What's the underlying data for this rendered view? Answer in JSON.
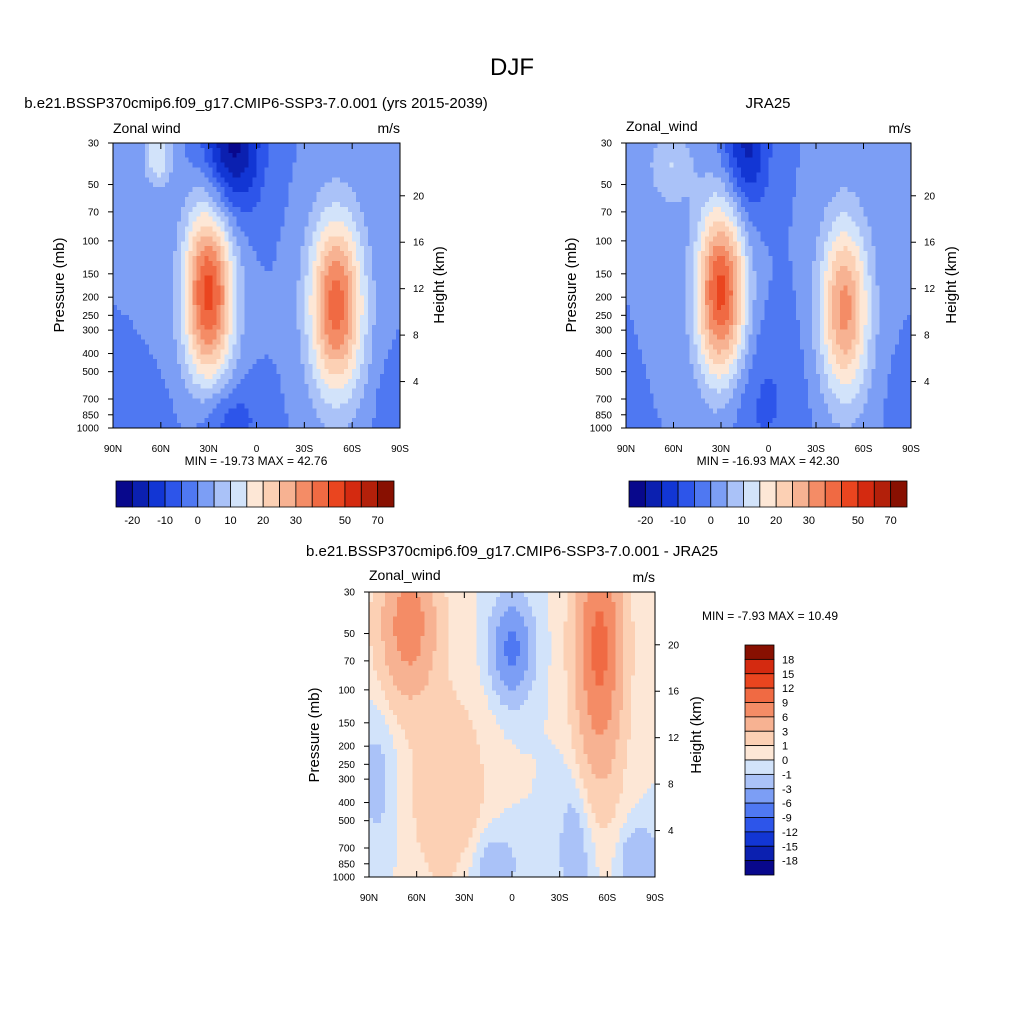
{
  "figure": {
    "title": "DJF"
  },
  "colormaps": {
    "main": [
      "#08088c",
      "#0b20b0",
      "#1236d4",
      "#2d55ea",
      "#4f78f2",
      "#7c9ef5",
      "#aac2f8",
      "#d2e3fa",
      "#fde7d6",
      "#fcd0b4",
      "#f7b292",
      "#f48c66",
      "#f06a43",
      "#ea451f",
      "#d42a10",
      "#b3200a",
      "#881001"
    ],
    "diff": [
      "#08088c",
      "#0b20b0",
      "#1236d4",
      "#2d55ea",
      "#4f78f2",
      "#7c9ef5",
      "#aac2f8",
      "#d2e3fa",
      "#fde7d6",
      "#fcd0b4",
      "#f7b292",
      "#f48c66",
      "#f06a43",
      "#ea451f",
      "#d42a10",
      "#881001"
    ]
  },
  "panels": {
    "model": {
      "title": "b.e21.BSSP370cmip6.f09_g17.CMIP6-SSP3-7.0.001 (yrs 2015-2039)",
      "variable": "Zonal wind",
      "units": "m/s",
      "left_axis_label": "Pressure (mb)",
      "right_axis_label": "Height (km)",
      "stats": "MIN = -19.73  MAX =  42.76"
    },
    "obs": {
      "title": "JRA25",
      "variable": "Zonal_wind",
      "units": "m/s",
      "left_axis_label": "Pressure (mb)",
      "right_axis_label": "Height (km)",
      "stats": "MIN = -16.93  MAX =  42.30"
    },
    "diff": {
      "title": "b.e21.BSSP370cmip6.f09_g17.CMIP6-SSP3-7.0.001 - JRA25",
      "variable": "Zonal_wind",
      "units": "m/s",
      "left_axis_label": "Pressure (mb)",
      "right_axis_label": "Height (km)",
      "stats": "MIN =  -7.93  MAX =  10.49"
    }
  },
  "chart_data": [
    {
      "type": "heatmap",
      "title": "b.e21.BSSP370cmip6.f09_g17.CMIP6-SSP3-7.0.001 (yrs 2015-2039)",
      "xlabel": "",
      "ylabel": "Pressure (mb)",
      "ylabel_right": "Height (km)",
      "x_ticks": [
        "90N",
        "60N",
        "30N",
        "0",
        "30S",
        "60S",
        "90S"
      ],
      "y_ticks": [
        "30",
        "50",
        "70",
        "100",
        "150",
        "200",
        "250",
        "300",
        "400",
        "500",
        "700",
        "850",
        "1000"
      ],
      "y2_ticks": [
        "4",
        "8",
        "12",
        "16",
        "20"
      ],
      "xlim": [
        90,
        -90
      ],
      "ylim": [
        1000,
        30
      ],
      "colorbar_labels": [
        "-20",
        "-10",
        "0",
        "10",
        "20",
        "30",
        "50",
        "70"
      ],
      "min": -19.73,
      "max": 42.76,
      "blobs": [
        {
          "lat": 62,
          "p": 35,
          "a": 15,
          "sl": 6,
          "sp": 0.35
        },
        {
          "lat": 30,
          "p": 190,
          "a": 42,
          "sl": 11,
          "sp": 1.0
        },
        {
          "lat": -50,
          "p": 220,
          "a": 38,
          "sl": 12,
          "sp": 1.0
        },
        {
          "lat": 15,
          "p": 30,
          "a": -22,
          "sl": 13,
          "sp": 0.8
        },
        {
          "lat": 18,
          "p": 900,
          "a": -9,
          "sl": 14,
          "sp": 0.45
        },
        {
          "lat": 72,
          "p": 900,
          "a": -5,
          "sl": 10,
          "sp": 0.4
        },
        {
          "lat": -88,
          "p": 800,
          "a": -5,
          "sl": 8,
          "sp": 0.5
        }
      ]
    },
    {
      "type": "heatmap",
      "title": "JRA25",
      "xlabel": "",
      "ylabel": "Pressure (mb)",
      "ylabel_right": "Height (km)",
      "x_ticks": [
        "90N",
        "60N",
        "30N",
        "0",
        "30S",
        "60S",
        "90S"
      ],
      "y_ticks": [
        "30",
        "50",
        "70",
        "100",
        "150",
        "200",
        "250",
        "300",
        "400",
        "500",
        "700",
        "850",
        "1000"
      ],
      "y2_ticks": [
        "4",
        "8",
        "12",
        "16",
        "20"
      ],
      "xlim": [
        90,
        -90
      ],
      "ylim": [
        1000,
        30
      ],
      "colorbar_labels": [
        "-20",
        "-10",
        "0",
        "10",
        "20",
        "30",
        "50",
        "70"
      ],
      "min": -16.93,
      "max": 42.3,
      "blobs": [
        {
          "lat": 62,
          "p": 40,
          "a": 10,
          "sl": 10,
          "sp": 0.45
        },
        {
          "lat": 30,
          "p": 190,
          "a": 42,
          "sl": 11,
          "sp": 1.0
        },
        {
          "lat": -48,
          "p": 230,
          "a": 32,
          "sl": 11,
          "sp": 1.0
        },
        {
          "lat": 14,
          "p": 30,
          "a": -17,
          "sl": 10,
          "sp": 0.8
        },
        {
          "lat": 5,
          "p": 700,
          "a": -6,
          "sl": 18,
          "sp": 0.9
        },
        {
          "lat": -88,
          "p": 800,
          "a": -4,
          "sl": 8,
          "sp": 0.5
        }
      ]
    },
    {
      "type": "heatmap",
      "title": "b.e21.BSSP370cmip6.f09_g17.CMIP6-SSP3-7.0.001 - JRA25",
      "xlabel": "",
      "ylabel": "Pressure (mb)",
      "ylabel_right": "Height (km)",
      "x_ticks": [
        "90N",
        "60N",
        "30N",
        "0",
        "30S",
        "60S",
        "90S"
      ],
      "y_ticks": [
        "30",
        "50",
        "70",
        "100",
        "150",
        "200",
        "250",
        "300",
        "400",
        "500",
        "700",
        "850",
        "1000"
      ],
      "y2_ticks": [
        "4",
        "8",
        "12",
        "16",
        "20"
      ],
      "xlim": [
        90,
        -90
      ],
      "ylim": [
        1000,
        30
      ],
      "colorbar_labels": [
        "18",
        "15",
        "12",
        "9",
        "6",
        "3",
        "1",
        "0",
        "-1",
        "-3",
        "-6",
        "-9",
        "-12",
        "-15",
        "-18"
      ],
      "min": -7.93,
      "max": 10.49,
      "blobs": [
        {
          "lat": 65,
          "p": 45,
          "a": 8,
          "sl": 12,
          "sp": 0.8
        },
        {
          "lat": -55,
          "p": 60,
          "a": 10,
          "sl": 10,
          "sp": 1.4
        },
        {
          "lat": 0,
          "p": 60,
          "a": -7,
          "sl": 8,
          "sp": 0.5
        },
        {
          "lat": 40,
          "p": 350,
          "a": 3,
          "sl": 15,
          "sp": 1.0
        },
        {
          "lat": -40,
          "p": 700,
          "a": -2,
          "sl": 8,
          "sp": 0.9
        },
        {
          "lat": 85,
          "p": 300,
          "a": -1.5,
          "sl": 8,
          "sp": 0.8
        },
        {
          "lat": 12,
          "p": 850,
          "a": -2,
          "sl": 12,
          "sp": 0.4
        },
        {
          "lat": -80,
          "p": 850,
          "a": -3,
          "sl": 8,
          "sp": 0.4
        }
      ]
    }
  ]
}
